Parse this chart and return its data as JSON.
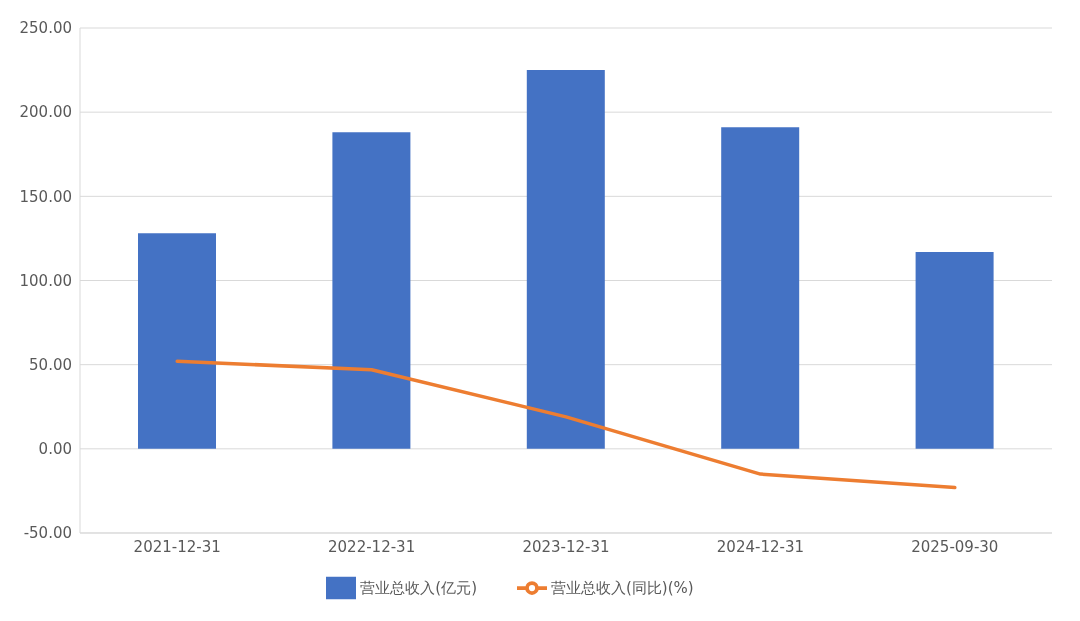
{
  "chart_data": {
    "type": "bar",
    "categories": [
      "2021-12-31",
      "2022-12-31",
      "2023-12-31",
      "2024-12-31",
      "2025-09-30"
    ],
    "series": [
      {
        "name": "营业总收入(亿元)",
        "color": "#4472c4",
        "values": [
          128,
          188,
          225,
          191,
          117
        ]
      },
      {
        "name": "营业总收入(同比)(%)",
        "type": "line",
        "color": "#ed7d31",
        "values": [
          52,
          47,
          19,
          -15,
          -23
        ]
      }
    ],
    "ylim": [
      -50,
      250
    ],
    "yticks": [
      {
        "value": -50,
        "label": "-50.00"
      },
      {
        "value": 0,
        "label": "0.00"
      },
      {
        "value": 50,
        "label": "50.00"
      },
      {
        "value": 100,
        "label": "100.00"
      },
      {
        "value": 150,
        "label": "150.00"
      },
      {
        "value": 200,
        "label": "200.00"
      },
      {
        "value": 250,
        "label": "250.00"
      }
    ],
    "grid": "y",
    "legend": "bottom",
    "marker": "none",
    "line_style": "solid"
  }
}
